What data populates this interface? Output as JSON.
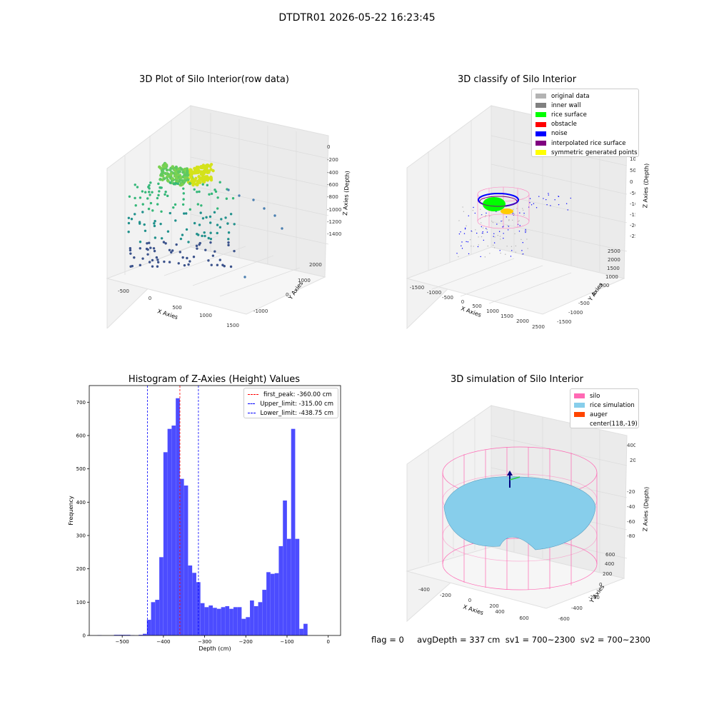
{
  "suptitle": "DTDTR01 2026-05-22 16:23:45",
  "footer": "flag = 0     avgDepth = 337 cm  sv1 = 700~2300  sv2 = 700~2300",
  "plots": {
    "raw": {
      "title": "3D Plot of Silo Interior(row data)",
      "xlabel": "X Axies",
      "ylabel": "Y Axies",
      "zlabel": "Z Axies (Depth)",
      "xticks": [
        "-500",
        "0",
        "500",
        "1000",
        "1500"
      ],
      "yticks": [
        "-1000",
        "0",
        "1000",
        "2000"
      ],
      "zticks": [
        "0",
        "-200",
        "-400",
        "-600",
        "-800",
        "-1000",
        "-1200",
        "-1400"
      ]
    },
    "classify": {
      "title": "3D classify of Silo Interior",
      "xlabel": "X Axies",
      "ylabel": "Y Axies",
      "zlabel": "Z Axies (Depth)",
      "xticks": [
        "-1500",
        "-1000",
        "-500",
        "0",
        "500",
        "1000",
        "1500",
        "2000",
        "2500"
      ],
      "yticks": [
        "-1500",
        "-1000",
        "-500",
        "0",
        "500",
        "1000",
        "1500",
        "2000",
        "2500"
      ],
      "zticks": [
        "1000",
        "500",
        "0",
        "-500",
        "-1000",
        "-1500",
        "-2000",
        "-2500"
      ],
      "zticks_extra": "1500",
      "legend": [
        {
          "label": "original data",
          "color": "#b3b3b3"
        },
        {
          "label": "inner wall",
          "color": "#808080"
        },
        {
          "label": "rice surface",
          "color": "#00ff00"
        },
        {
          "label": "obstacle",
          "color": "#ff0000"
        },
        {
          "label": "noise",
          "color": "#0000ff"
        },
        {
          "label": "interpolated rice surface",
          "color": "#800080"
        },
        {
          "label": "symmetric generated points",
          "color": "#ffff00"
        }
      ]
    },
    "simulation": {
      "title": "3D simulation of Silo Interior",
      "xlabel": "X Axies",
      "ylabel": "Y Axies",
      "zlabel": "Z Axies (Depth)",
      "xticks": [
        "-400",
        "-200",
        "0",
        "200",
        "400",
        "600"
      ],
      "yticks": [
        "-600",
        "-400",
        "-200",
        "0",
        "200",
        "400",
        "600"
      ],
      "zticks": [
        "400",
        "200",
        "0",
        "-200",
        "-400",
        "-600",
        "-800"
      ],
      "legend": [
        {
          "label": "silo",
          "color": "#ff69b4"
        },
        {
          "label": "rice simulation",
          "color": "#87ceeb"
        },
        {
          "label": "auger",
          "color": "#ff4500"
        },
        {
          "label": "center(118,-19)",
          "color": "#ffffff"
        }
      ]
    }
  },
  "chart_data": {
    "type": "bar",
    "title": "Histogram of Z-Axies (Height) Values",
    "xlabel": "Depth (cm)",
    "ylabel": "Frequency",
    "xlim": [
      -580,
      30
    ],
    "ylim": [
      0,
      750
    ],
    "xticks": [
      -500,
      -400,
      -300,
      -200,
      -100,
      0
    ],
    "yticks": [
      0,
      100,
      200,
      300,
      400,
      500,
      600,
      700
    ],
    "bin_width": 10,
    "bins": [
      [
        -560,
        1
      ],
      [
        -520,
        2
      ],
      [
        -510,
        2
      ],
      [
        -500,
        2
      ],
      [
        -490,
        2
      ],
      [
        -480,
        1
      ],
      [
        -460,
        2
      ],
      [
        -450,
        5
      ],
      [
        -440,
        47
      ],
      [
        -430,
        100
      ],
      [
        -420,
        107
      ],
      [
        -410,
        235
      ],
      [
        -400,
        550
      ],
      [
        -390,
        620
      ],
      [
        -380,
        630
      ],
      [
        -370,
        712
      ],
      [
        -360,
        470
      ],
      [
        -350,
        450
      ],
      [
        -340,
        210
      ],
      [
        -330,
        188
      ],
      [
        -320,
        160
      ],
      [
        -310,
        97
      ],
      [
        -300,
        85
      ],
      [
        -290,
        90
      ],
      [
        -280,
        83
      ],
      [
        -270,
        80
      ],
      [
        -260,
        85
      ],
      [
        -250,
        88
      ],
      [
        -240,
        80
      ],
      [
        -230,
        85
      ],
      [
        -220,
        85
      ],
      [
        -210,
        50
      ],
      [
        -200,
        55
      ],
      [
        -190,
        105
      ],
      [
        -180,
        88
      ],
      [
        -170,
        100
      ],
      [
        -160,
        137
      ],
      [
        -150,
        190
      ],
      [
        -140,
        185
      ],
      [
        -130,
        187
      ],
      [
        -120,
        268
      ],
      [
        -110,
        405
      ],
      [
        -100,
        290
      ],
      [
        -90,
        620
      ],
      [
        -80,
        290
      ],
      [
        -70,
        20
      ],
      [
        -60,
        35
      ]
    ],
    "bar_color": "#0000ff",
    "vlines": [
      {
        "label": "first_peak: -360.00 cm",
        "x": -360.0,
        "color": "#ff0000"
      },
      {
        "label": "Upper_limit: -315.00 cm",
        "x": -315.0,
        "color": "#0000ff"
      },
      {
        "label": "Lower_limit: -438.75 cm",
        "x": -438.75,
        "color": "#0000ff"
      }
    ],
    "legend_position": "upper right"
  }
}
